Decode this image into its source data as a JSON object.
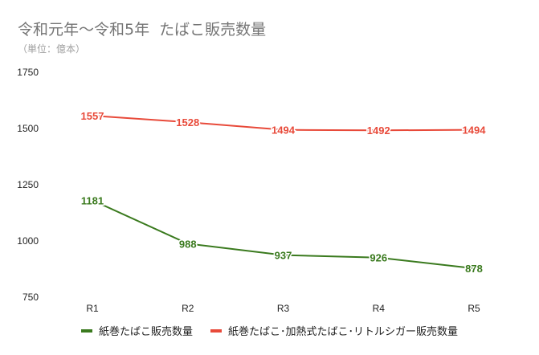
{
  "chart_data": {
    "type": "line",
    "title": "令和元年～令和5年  たばこ販売数量",
    "subtitle": "（単位：億本）",
    "categories": [
      "R1",
      "R2",
      "R3",
      "R4",
      "R5"
    ],
    "ylim": [
      750,
      1750
    ],
    "yticks": [
      750,
      1000,
      1250,
      1500,
      1750
    ],
    "grid": false,
    "legend_position": "bottom",
    "series": [
      {
        "name": "紙巻たばこ販売数量",
        "color": "#3a7a1e",
        "values": [
          1181,
          988,
          937,
          926,
          878
        ]
      },
      {
        "name": "紙巻たばこ･加熱式たばこ･リトルシガー販売数量",
        "color": "#e84a3a",
        "values": [
          1557,
          1528,
          1494,
          1492,
          1494
        ]
      }
    ]
  }
}
